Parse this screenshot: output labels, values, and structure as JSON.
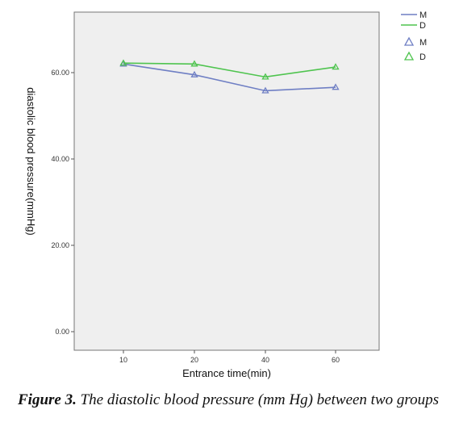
{
  "chart_data": {
    "type": "line",
    "categories": [
      "10",
      "20",
      "40",
      "60"
    ],
    "ylabel": "diastolic blood pressure(mmHg)",
    "xlabel": "Entrance time(min)",
    "yticks": [
      "0.00",
      "20.00",
      "40.00",
      "60.00"
    ],
    "ylim": [
      0,
      72
    ],
    "grid": false,
    "legend_position": "right",
    "series": [
      {
        "name": "M",
        "color": "#6f7fc4",
        "values": [
          62.0,
          59.5,
          55.8,
          56.6
        ]
      },
      {
        "name": "D",
        "color": "#4fc44f",
        "values": [
          62.2,
          62.0,
          59.0,
          61.3
        ]
      }
    ]
  },
  "figure": {
    "caption_label": "Figure 3.",
    "caption_text": " The diastolic blood pressure (mm Hg) between two groups"
  }
}
